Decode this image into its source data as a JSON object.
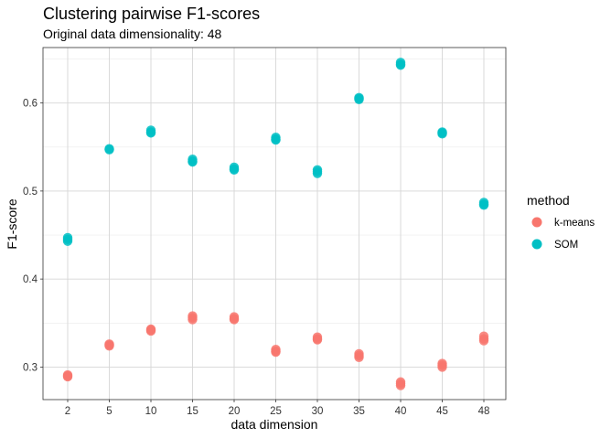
{
  "chart_data": {
    "type": "scatter",
    "title": "Clustering pairwise F1-scores",
    "subtitle": "Original data dimensionality: 48",
    "xlabel": "data dimension",
    "ylabel": "F1-score",
    "categories": [
      "2",
      "5",
      "10",
      "15",
      "20",
      "25",
      "30",
      "35",
      "40",
      "45",
      "48"
    ],
    "yticks": [
      "0.3",
      "0.4",
      "0.5",
      "0.6"
    ],
    "ylim": [
      0.263,
      0.663
    ],
    "grid": true,
    "legend": {
      "title": "method",
      "position": "right"
    },
    "series": [
      {
        "name": "k-means",
        "color": "#F8766D",
        "points": [
          [
            "2",
            0.289
          ],
          [
            "2",
            0.291
          ],
          [
            "2",
            0.29
          ],
          [
            "5",
            0.324
          ],
          [
            "5",
            0.326
          ],
          [
            "5",
            0.325
          ],
          [
            "10",
            0.341
          ],
          [
            "10",
            0.343
          ],
          [
            "10",
            0.342
          ],
          [
            "15",
            0.354
          ],
          [
            "15",
            0.358
          ],
          [
            "15",
            0.356
          ],
          [
            "20",
            0.354
          ],
          [
            "20",
            0.357
          ],
          [
            "20",
            0.355
          ],
          [
            "25",
            0.317
          ],
          [
            "25",
            0.32
          ],
          [
            "25",
            0.318
          ],
          [
            "30",
            0.331
          ],
          [
            "30",
            0.334
          ],
          [
            "30",
            0.332
          ],
          [
            "35",
            0.311
          ],
          [
            "35",
            0.315
          ],
          [
            "35",
            0.313
          ],
          [
            "40",
            0.279
          ],
          [
            "40",
            0.283
          ],
          [
            "40",
            0.281
          ],
          [
            "45",
            0.3
          ],
          [
            "45",
            0.304
          ],
          [
            "45",
            0.302
          ],
          [
            "48",
            0.33
          ],
          [
            "48",
            0.335
          ],
          [
            "48",
            0.332
          ]
        ]
      },
      {
        "name": "SOM",
        "color": "#00BFC4",
        "points": [
          [
            "2",
            0.443
          ],
          [
            "2",
            0.447
          ],
          [
            "2",
            0.445
          ],
          [
            "5",
            0.547
          ],
          [
            "5",
            0.548
          ],
          [
            "10",
            0.566
          ],
          [
            "10",
            0.569
          ],
          [
            "10",
            0.567
          ],
          [
            "15",
            0.533
          ],
          [
            "15",
            0.536
          ],
          [
            "15",
            0.534
          ],
          [
            "20",
            0.524
          ],
          [
            "20",
            0.527
          ],
          [
            "20",
            0.525
          ],
          [
            "25",
            0.558
          ],
          [
            "25",
            0.561
          ],
          [
            "25",
            0.559
          ],
          [
            "30",
            0.52
          ],
          [
            "30",
            0.524
          ],
          [
            "30",
            0.522
          ],
          [
            "35",
            0.604
          ],
          [
            "35",
            0.606
          ],
          [
            "35",
            0.605
          ],
          [
            "40",
            0.643
          ],
          [
            "40",
            0.646
          ],
          [
            "40",
            0.644
          ],
          [
            "45",
            0.565
          ],
          [
            "45",
            0.567
          ],
          [
            "45",
            0.566
          ],
          [
            "48",
            0.484
          ],
          [
            "48",
            0.487
          ],
          [
            "48",
            0.485
          ]
        ]
      }
    ]
  }
}
